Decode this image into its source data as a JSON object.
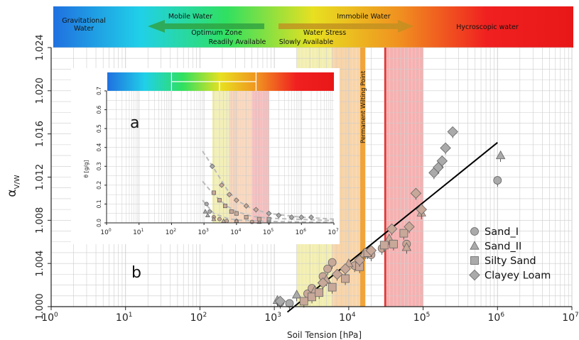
{
  "chart_data": [
    {
      "type": "scatter",
      "panel_label": "b",
      "xlabel": "Soil Tension [hPa]",
      "ylabel": "α",
      "ylabel_sub": "V/W",
      "x_scale": "log",
      "xlim": [
        1,
        10000000
      ],
      "ylim": [
        1.0,
        1.024
      ],
      "x_ticks": [
        {
          "value": 1,
          "base": "10",
          "exp": "0"
        },
        {
          "value": 10,
          "base": "10",
          "exp": "1"
        },
        {
          "value": 100,
          "base": "10",
          "exp": "2"
        },
        {
          "value": 1000,
          "base": "10",
          "exp": "3"
        },
        {
          "value": 10000,
          "base": "10",
          "exp": "4"
        },
        {
          "value": 100000,
          "base": "10",
          "exp": "5"
        },
        {
          "value": 1000000,
          "base": "10",
          "exp": "6"
        },
        {
          "value": 10000000,
          "base": "10",
          "exp": "7"
        }
      ],
      "y_ticks": [
        {
          "value": 1.0,
          "label": "1.000"
        },
        {
          "value": 1.004,
          "label": "1.004"
        },
        {
          "value": 1.008,
          "label": "1.008"
        },
        {
          "value": 1.012,
          "label": "1.012"
        },
        {
          "value": 1.016,
          "label": "1.016"
        },
        {
          "value": 1.02,
          "label": "1.020"
        },
        {
          "value": 1.024,
          "label": "1.024"
        }
      ],
      "grid": true,
      "legend_position": "bottom-right",
      "zones": [
        {
          "from": 2000,
          "to": 6000,
          "color": "#e8e070"
        },
        {
          "from": 6000,
          "to": 15000,
          "color": "#f2b060"
        },
        {
          "from": 14000,
          "to": 16500,
          "color": "#f09a30"
        },
        {
          "from": 30000,
          "to": 100000,
          "color": "#f07070"
        }
      ],
      "pwp_line": {
        "x": 15500,
        "label": "Permanent Wilting Point"
      },
      "red_line": {
        "x": 31000
      },
      "trend_line": [
        [
          1500,
          0.9995
        ],
        [
          1000000,
          1.0152
        ]
      ],
      "series": [
        {
          "name": "Sand_I",
          "marker": "circle",
          "points": [
            [
              1200,
              1.0004
            ],
            [
              1600,
              1.0003
            ],
            [
              2800,
              1.0012
            ],
            [
              3200,
              1.0017
            ],
            [
              4500,
              1.0028
            ],
            [
              5200,
              1.0035
            ],
            [
              6000,
              1.0041
            ],
            [
              12000,
              1.0038
            ],
            [
              17000,
              1.005
            ],
            [
              20000,
              1.0048
            ],
            [
              28000,
              1.0054
            ],
            [
              60000,
              1.0058
            ],
            [
              1000000,
              1.0117
            ]
          ]
        },
        {
          "name": "Sand_II",
          "marker": "triangle",
          "points": [
            [
              1100,
              1.0006
            ],
            [
              2000,
              1.0011
            ],
            [
              3500,
              1.0015
            ],
            [
              5000,
              1.0025
            ],
            [
              10000,
              1.004
            ],
            [
              16000,
              1.0049
            ],
            [
              35000,
              1.0063
            ],
            [
              60000,
              1.0055
            ],
            [
              95000,
              1.0087
            ],
            [
              1100000,
              1.014
            ]
          ]
        },
        {
          "name": "Silty Sand",
          "marker": "square",
          "points": [
            [
              2500,
              1.0005
            ],
            [
              3200,
              1.0009
            ],
            [
              4000,
              1.0013
            ],
            [
              6000,
              1.0018
            ],
            [
              9000,
              1.0026
            ],
            [
              14000,
              1.0037
            ],
            [
              18000,
              1.005
            ],
            [
              30000,
              1.0057
            ],
            [
              40000,
              1.0058
            ],
            [
              55000,
              1.0068
            ]
          ]
        },
        {
          "name": "Clayey Loam",
          "marker": "diamond",
          "points": [
            [
              1200,
              1.0005
            ],
            [
              4500,
              1.0022
            ],
            [
              7000,
              1.003
            ],
            [
              9000,
              1.0035
            ],
            [
              14000,
              1.0043
            ],
            [
              20000,
              1.0052
            ],
            [
              38000,
              1.0072
            ],
            [
              65000,
              1.0074
            ],
            [
              80000,
              1.0105
            ],
            [
              95000,
              1.009
            ],
            [
              140000,
              1.0124
            ],
            [
              160000,
              1.0129
            ],
            [
              180000,
              1.0135
            ],
            [
              200000,
              1.0147
            ],
            [
              250000,
              1.0162
            ]
          ]
        }
      ]
    },
    {
      "type": "scatter",
      "panel_label": "a",
      "ylabel": "θ [g/g]",
      "x_scale": "log",
      "xlim": [
        1,
        10000000
      ],
      "ylim": [
        0,
        0.7
      ],
      "x_ticks": [
        {
          "value": 1,
          "base": "10",
          "exp": "0"
        },
        {
          "value": 10,
          "base": "10",
          "exp": "1"
        },
        {
          "value": 100,
          "base": "10",
          "exp": "2"
        },
        {
          "value": 1000,
          "base": "10",
          "exp": "3"
        },
        {
          "value": 10000,
          "base": "10",
          "exp": "4"
        },
        {
          "value": 100000,
          "base": "10",
          "exp": "5"
        },
        {
          "value": 1000000,
          "base": "10",
          "exp": "6"
        },
        {
          "value": 10000000,
          "base": "10",
          "exp": "7"
        }
      ],
      "y_ticks": [
        {
          "value": 0.0,
          "label": "0.0"
        },
        {
          "value": 0.1,
          "label": "0.1"
        },
        {
          "value": 0.2,
          "label": "0.2"
        },
        {
          "value": 0.3,
          "label": "0.3"
        },
        {
          "value": 0.4,
          "label": "0.4"
        },
        {
          "value": 0.5,
          "label": "0.5"
        },
        {
          "value": 0.6,
          "label": "0.6"
        },
        {
          "value": 0.7,
          "label": "0.7"
        }
      ],
      "grid": true,
      "zones": [
        {
          "from": 1800,
          "to": 6000,
          "color": "#e8e070"
        },
        {
          "from": 6000,
          "to": 30000,
          "color": "#f2b080"
        },
        {
          "from": 30000,
          "to": 100000,
          "color": "#f08080"
        }
      ],
      "series": [
        {
          "name": "Sand_I",
          "marker": "circle",
          "points": [
            [
              1200,
              0.1
            ],
            [
              1500,
              0.06
            ],
            [
              2000,
              0.03
            ],
            [
              3000,
              0.02
            ],
            [
              5000,
              0.01
            ],
            [
              10000,
              0.01
            ],
            [
              30000,
              0.005
            ],
            [
              100000,
              0.005
            ]
          ]
        },
        {
          "name": "Sand_II",
          "marker": "triangle",
          "points": [
            [
              1100,
              0.06
            ],
            [
              1300,
              0.04
            ],
            [
              2000,
              0.02
            ],
            [
              4000,
              0.01
            ],
            [
              10000,
              0.01
            ],
            [
              50000,
              0.005
            ]
          ]
        },
        {
          "name": "Silty Sand",
          "marker": "square",
          "points": [
            [
              2000,
              0.16
            ],
            [
              3000,
              0.12
            ],
            [
              4500,
              0.09
            ],
            [
              7000,
              0.06
            ],
            [
              10000,
              0.05
            ],
            [
              20000,
              0.03
            ],
            [
              50000,
              0.02
            ],
            [
              100000,
              0.02
            ]
          ]
        },
        {
          "name": "Clayey Loam",
          "marker": "diamond",
          "points": [
            [
              1800,
              0.3
            ],
            [
              3500,
              0.2
            ],
            [
              6000,
              0.15
            ],
            [
              10000,
              0.12
            ],
            [
              20000,
              0.09
            ],
            [
              40000,
              0.07
            ],
            [
              100000,
              0.05
            ],
            [
              200000,
              0.04
            ],
            [
              500000,
              0.03
            ],
            [
              1000000,
              0.03
            ],
            [
              2000000,
              0.03
            ]
          ]
        }
      ],
      "fit_curves": [
        [
          [
            900,
            0.38
          ],
          [
            2000,
            0.29
          ],
          [
            5000,
            0.18
          ],
          [
            10000,
            0.12
          ],
          [
            30000,
            0.075
          ],
          [
            100000,
            0.05
          ],
          [
            1000000,
            0.03
          ],
          [
            10000000,
            0.02
          ]
        ],
        [
          [
            900,
            0.22
          ],
          [
            2000,
            0.15
          ],
          [
            5000,
            0.09
          ],
          [
            10000,
            0.06
          ],
          [
            30000,
            0.035
          ],
          [
            100000,
            0.025
          ],
          [
            1000000,
            0.018
          ],
          [
            10000000,
            0.012
          ]
        ],
        [
          [
            900,
            0.12
          ],
          [
            2000,
            0.05
          ],
          [
            5000,
            0.025
          ],
          [
            10000,
            0.015
          ],
          [
            100000,
            0.008
          ],
          [
            1000000,
            0.005
          ],
          [
            10000000,
            0.003
          ]
        ]
      ]
    }
  ],
  "top_bar": {
    "gradient": [
      "#2070e0",
      "#20d0e8",
      "#30e060",
      "#e8e020",
      "#f09020",
      "#f02020",
      "#e81818"
    ],
    "labels": [
      {
        "id": "gravitational",
        "lines": [
          "Gravitational",
          "Water"
        ]
      },
      {
        "id": "mobile",
        "lines": [
          "Mobile Water"
        ]
      },
      {
        "id": "optimum",
        "lines": [
          "Optimum Zone"
        ]
      },
      {
        "id": "readily",
        "lines": [
          "Readily Available"
        ]
      },
      {
        "id": "immobile",
        "lines": [
          "Immobile Water"
        ]
      },
      {
        "id": "stress",
        "lines": [
          "Water Stress"
        ]
      },
      {
        "id": "slowly",
        "lines": [
          "Slowly Available"
        ]
      },
      {
        "id": "hygroscopic",
        "lines": [
          "Hycroscopic water"
        ]
      }
    ]
  },
  "colors": {
    "marker_fill": "#aaaaaa",
    "marker_fill_zone": "#c8a898",
    "marker_stroke": "#666666",
    "trend": "#000000",
    "pwp": "#f0a030",
    "red_line": "#e83030",
    "grid": "#cccccc"
  }
}
